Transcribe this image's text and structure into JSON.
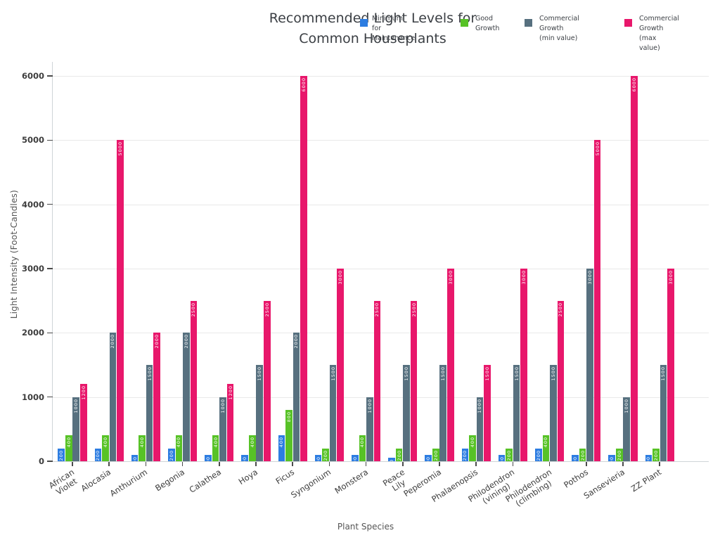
{
  "title": {
    "line1": "Recommended Light Levels for",
    "line2": "Common Houseplants"
  },
  "legend": {
    "entries": [
      {
        "label": "Minimum\nfor Maintenance",
        "color": "#2d7de1"
      },
      {
        "label": "Good\nGrowth",
        "color": "#57c226"
      },
      {
        "label": "Commercial\nGrowth\n(min value)",
        "color": "#57707f"
      },
      {
        "label": "Commercial\nGrowth\n(max value)",
        "color": "#e8176b"
      }
    ]
  },
  "chart_data": {
    "type": "bar",
    "title": "Recommended Light Levels for Common Houseplants",
    "xlabel": "Plant Species",
    "ylabel": "Light Intensity (Foot-Candles)",
    "ylim": [
      0,
      6000
    ],
    "yticks": [
      0,
      1000,
      2000,
      3000,
      4000,
      5000,
      6000
    ],
    "grid": true,
    "legend_position": "top",
    "categories": [
      "African\nViolet",
      "Alocasia",
      "Anthurium",
      "Begonia",
      "Calathea",
      "Hoya",
      "Ficus",
      "Syngonium",
      "Monstera",
      "Peace\nLily",
      "Peperomia",
      "Phalaenopsis",
      "Philodendron\n(vining)",
      "Philodendron\n(climbing)",
      "Pothos",
      "Sansevieria",
      "ZZ Plant"
    ],
    "series": [
      {
        "name": "Minimum for Maintenance",
        "color": "#2d7de1",
        "values": [
          200,
          200,
          100,
          200,
          100,
          100,
          400,
          100,
          100,
          50,
          100,
          200,
          100,
          200,
          100,
          100,
          100
        ]
      },
      {
        "name": "Good Growth",
        "color": "#57c226",
        "values": [
          400,
          400,
          400,
          400,
          400,
          400,
          800,
          200,
          400,
          200,
          200,
          400,
          200,
          400,
          200,
          200,
          200
        ]
      },
      {
        "name": "Commercial Growth (min value)",
        "color": "#57707f",
        "values": [
          1000,
          2000,
          1500,
          2000,
          1000,
          1500,
          2000,
          1500,
          1000,
          1500,
          1500,
          1000,
          1500,
          1500,
          3000,
          1000,
          1500
        ]
      },
      {
        "name": "Commercial Growth (max value)",
        "color": "#e8176b",
        "values": [
          1200,
          5000,
          2000,
          2500,
          1200,
          2500,
          6000,
          3000,
          2500,
          2500,
          3000,
          1500,
          3000,
          2500,
          5000,
          6000,
          3000
        ]
      }
    ]
  }
}
